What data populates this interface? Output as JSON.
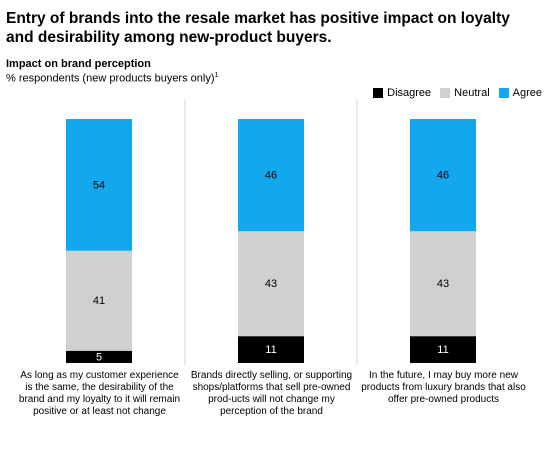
{
  "title": "Entry of brands into the resale market has positive impact on loyalty and desirability among new-product buyers.",
  "subtitle": "Impact on brand perception",
  "note": "% respondents (new products buyers only)",
  "note_marker": "1",
  "colors": {
    "disagree": "#000000",
    "neutral": "#d0d0d0",
    "agree": "#13a8ee",
    "divider": "#d6d6d6"
  },
  "chart_data": {
    "type": "bar",
    "stacked": true,
    "legend_position": "top-right",
    "categories": [
      "As long as my customer experience is the same, the desirability of the brand and my loyalty to it will remain positive or at least not change",
      "Brands directly selling, or supporting shops/platforms that sell pre-owned prod-ucts will not change my perception of the brand",
      "In the future, I may buy more new products from luxury brands that also offer pre-owned products"
    ],
    "series": [
      {
        "name": "Disagree",
        "values": [
          5,
          11,
          11
        ]
      },
      {
        "name": "Neutral",
        "values": [
          41,
          43,
          43
        ]
      },
      {
        "name": "Agree",
        "values": [
          54,
          46,
          46
        ]
      }
    ],
    "ylim": [
      0,
      100
    ],
    "grid": false
  }
}
